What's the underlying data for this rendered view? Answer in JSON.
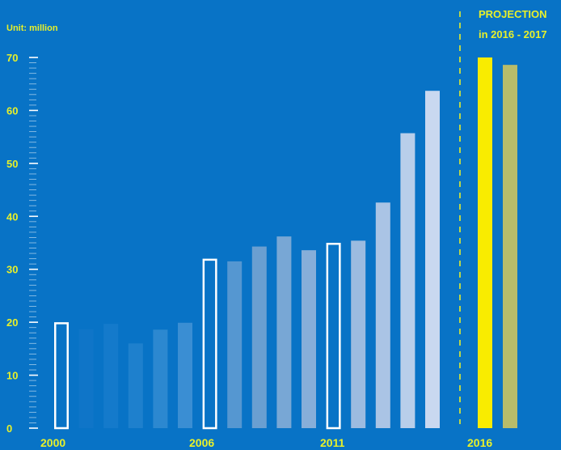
{
  "unit_label": "Unit: million",
  "projection": {
    "title": "PROJECTION",
    "subtitle": "in 2016 - 2017"
  },
  "colors": {
    "background": "#0873c6",
    "text_accent": "#e8f02a",
    "outline_bar": "#ffffff",
    "divider": "#e8f02a"
  },
  "chart_data": {
    "type": "bar",
    "ylim": [
      0,
      70
    ],
    "yticks": [
      0,
      10,
      20,
      30,
      40,
      50,
      60,
      70
    ],
    "grid": false,
    "x_labels": [
      {
        "after_bar": 0,
        "text": "2000"
      },
      {
        "after_bar": 6,
        "text": "2006"
      },
      {
        "after_bar": 11,
        "text": "2011"
      },
      {
        "after_bar": 16,
        "text": "2016"
      }
    ],
    "series": [
      {
        "values": [
          20,
          18.7,
          19.7,
          16,
          18.6,
          19.9,
          32,
          31.5,
          34.3,
          36.2,
          33.6,
          35,
          35.4,
          42.6,
          55.7,
          63.7
        ],
        "colors": [
          "#ffffff",
          "#0f75c8",
          "#147acb",
          "#1e80cd",
          "#2c88d0",
          "#3a8ed3",
          "#ffffff",
          "#5597d1",
          "#6a9fd1",
          "#78a7d5",
          "#87aed9",
          "#ffffff",
          "#9cbbe0",
          "#aac4e5",
          "#b8ceea",
          "#c9d8f0"
        ],
        "outlined": [
          true,
          false,
          false,
          false,
          false,
          false,
          true,
          false,
          false,
          false,
          false,
          true,
          false,
          false,
          false,
          false
        ]
      },
      {
        "values": [
          70,
          68.6
        ],
        "colors": [
          "#f9ec00",
          "#b8bc6a"
        ],
        "outlined": [
          false,
          false
        ]
      }
    ]
  }
}
